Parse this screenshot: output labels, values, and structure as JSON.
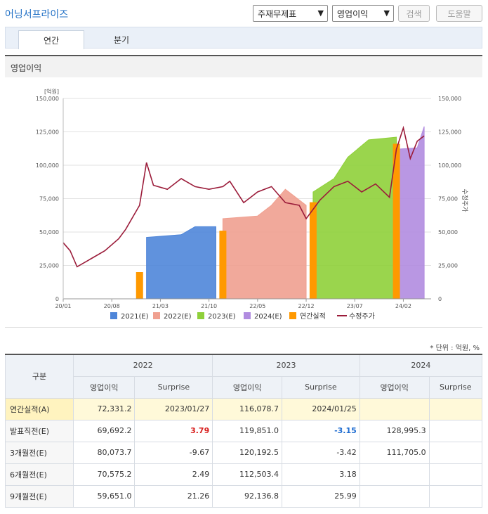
{
  "header": {
    "title": "어닝서프라이즈",
    "select_type": "주재무제표",
    "select_metric": "영업이익",
    "search_label": "검색",
    "help_label": "도움말"
  },
  "tabs": [
    {
      "label": "연간",
      "active": true
    },
    {
      "label": "분기",
      "active": false
    }
  ],
  "section_title": "영업이익",
  "chart_data": {
    "type": "area",
    "ylabel_left": "[억원]",
    "ylabel_right": "수정주가",
    "ylim": [
      0,
      150000
    ],
    "yticks_left": [
      "150,000",
      "125,000",
      "100,000",
      "75,000",
      "50,000",
      "25,000",
      "0"
    ],
    "yticks_right": [
      "150,000",
      "125,000",
      "100,000",
      "75,000",
      "50,000",
      "25,000",
      "0"
    ],
    "xticks": [
      "20/01",
      "20/08",
      "21/03",
      "21/10",
      "22/05",
      "22/12",
      "23/07",
      "24/02"
    ],
    "legend": [
      "2021(E)",
      "2022(E)",
      "2023(E)",
      "2024(E)",
      "연간실적",
      "수정주가"
    ],
    "colors": {
      "e2021": "#4f86d9",
      "e2022": "#f0a090",
      "e2023": "#8fd03a",
      "e2024": "#b18ce0",
      "actual": "#ff9900",
      "price": "#9b1c3a"
    },
    "series": [
      {
        "name": "2021(E)",
        "points": [
          [
            "21/01",
            46000
          ],
          [
            "21/06",
            48000
          ],
          [
            "21/08",
            54000
          ],
          [
            "21/11",
            54000
          ]
        ]
      },
      {
        "name": "2022(E)",
        "points": [
          [
            "21/12",
            60000
          ],
          [
            "22/05",
            62000
          ],
          [
            "22/07",
            70000
          ],
          [
            "22/09",
            82000
          ],
          [
            "22/12",
            70000
          ]
        ]
      },
      {
        "name": "2023(E)",
        "points": [
          [
            "23/01",
            80000
          ],
          [
            "23/04",
            90000
          ],
          [
            "23/06",
            106000
          ],
          [
            "23/09",
            119000
          ],
          [
            "24/01",
            121000
          ]
        ]
      },
      {
        "name": "2024(E)",
        "points": [
          [
            "24/01",
            112000
          ],
          [
            "24/04",
            113000
          ],
          [
            "24/05",
            129000
          ]
        ]
      },
      {
        "name": "연간실적",
        "points": [
          [
            "20/12",
            20000
          ],
          [
            "21/12",
            51000
          ],
          [
            "23/01",
            72331.2
          ],
          [
            "24/01",
            116078.7
          ]
        ]
      }
    ],
    "price_series": {
      "name": "수정주가",
      "points": [
        [
          "20/01",
          42000
        ],
        [
          "20/02",
          36000
        ],
        [
          "20/03",
          24000
        ],
        [
          "20/05",
          30000
        ],
        [
          "20/07",
          36000
        ],
        [
          "20/09",
          45000
        ],
        [
          "20/10",
          52000
        ],
        [
          "20/12",
          70000
        ],
        [
          "21/01",
          102000
        ],
        [
          "21/02",
          85000
        ],
        [
          "21/04",
          82000
        ],
        [
          "21/06",
          90000
        ],
        [
          "21/08",
          84000
        ],
        [
          "21/10",
          82000
        ],
        [
          "21/12",
          84000
        ],
        [
          "22/01",
          88000
        ],
        [
          "22/03",
          72000
        ],
        [
          "22/05",
          80000
        ],
        [
          "22/07",
          84000
        ],
        [
          "22/09",
          72000
        ],
        [
          "22/11",
          70000
        ],
        [
          "22/12",
          60000
        ],
        [
          "23/02",
          74000
        ],
        [
          "23/04",
          84000
        ],
        [
          "23/06",
          88000
        ],
        [
          "23/08",
          80000
        ],
        [
          "23/10",
          86000
        ],
        [
          "23/12",
          76000
        ],
        [
          "24/01",
          112000
        ],
        [
          "24/02",
          128000
        ],
        [
          "24/03",
          105000
        ],
        [
          "24/04",
          118000
        ],
        [
          "24/05",
          122000
        ]
      ]
    }
  },
  "unit_note": "* 단위 : 억원, %",
  "table": {
    "label_header": "구분",
    "years": [
      "2022",
      "2023",
      "2024"
    ],
    "sub_headers": [
      "영업이익",
      "Surprise",
      "영업이익",
      "Surprise",
      "영업이익",
      "Surprise"
    ],
    "rows": [
      {
        "label": "연간실적(A)",
        "cells": [
          "72,331.2",
          "2023/01/27",
          "116,078.7",
          "2024/01/25",
          "",
          ""
        ]
      },
      {
        "label": "발표직전(E)",
        "cells": [
          "69,692.2",
          "3.79",
          "119,851.0",
          "-3.15",
          "128,995.3",
          ""
        ]
      },
      {
        "label": "3개월전(E)",
        "cells": [
          "80,073.7",
          "-9.67",
          "120,192.5",
          "-3.42",
          "111,705.0",
          ""
        ]
      },
      {
        "label": "6개월전(E)",
        "cells": [
          "70,575.2",
          "2.49",
          "112,503.4",
          "3.18",
          "",
          ""
        ]
      },
      {
        "label": "9개월전(E)",
        "cells": [
          "59,651.0",
          "21.26",
          "92,136.8",
          "25.99",
          "",
          ""
        ]
      }
    ]
  }
}
